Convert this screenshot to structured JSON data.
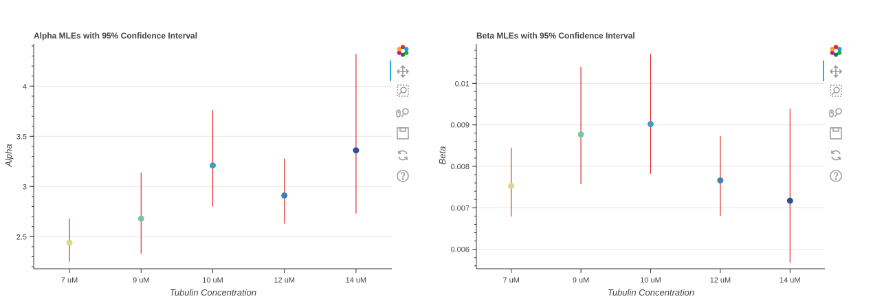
{
  "chart_data": [
    {
      "type": "scatter",
      "title": "Alpha MLEs with 95% Confidence Interval",
      "xlabel": "Tubulin Concentration",
      "ylabel": "Alpha",
      "categories": [
        "7 uM",
        "9 uM",
        "10 uM",
        "12 uM",
        "14 uM"
      ],
      "values": [
        2.44,
        2.68,
        3.21,
        2.91,
        3.36
      ],
      "ci_low": [
        2.25,
        2.33,
        2.8,
        2.63,
        2.73
      ],
      "ci_high": [
        2.68,
        3.14,
        3.76,
        3.28,
        4.32
      ],
      "yticks": [
        "2.5",
        "3",
        "3.5",
        "4"
      ],
      "ytick_values": [
        2.5,
        3.0,
        3.5,
        4.0
      ],
      "ylim": [
        2.18,
        4.42
      ],
      "grid": true,
      "errorbar_color": "#e8282b",
      "point_colors": [
        "#d7d98e",
        "#7fc2a5",
        "#3d9fbf",
        "#3f7fb3",
        "#2e4d98"
      ]
    },
    {
      "type": "scatter",
      "title": "Beta MLEs with 95% Confidence Interval",
      "xlabel": "Tubulin Concentration",
      "ylabel": "Beta",
      "categories": [
        "7 uM",
        "9 uM",
        "10 uM",
        "12 uM",
        "14 uM"
      ],
      "values": [
        0.00753,
        0.00877,
        0.00902,
        0.00766,
        0.00717
      ],
      "ci_low": [
        0.00679,
        0.00757,
        0.00782,
        0.00681,
        0.00568
      ],
      "ci_high": [
        0.00845,
        0.0104,
        0.01071,
        0.00873,
        0.00939
      ],
      "yticks": [
        "0.006",
        "0.007",
        "0.008",
        "0.009",
        "0.01"
      ],
      "ytick_values": [
        0.006,
        0.007,
        0.008,
        0.009,
        0.01
      ],
      "ylim": [
        0.00553,
        0.01095
      ],
      "grid": true,
      "errorbar_color": "#e8282b",
      "point_colors": [
        "#d7d98e",
        "#7fc2a5",
        "#3d9fbf",
        "#3f7fb3",
        "#2e4d98"
      ]
    }
  ],
  "toolbar": {
    "tools": [
      "bokeh-logo-icon",
      "pan-icon",
      "box-zoom-icon",
      "wheel-zoom-icon",
      "save-icon",
      "reset-icon",
      "help-icon"
    ]
  }
}
